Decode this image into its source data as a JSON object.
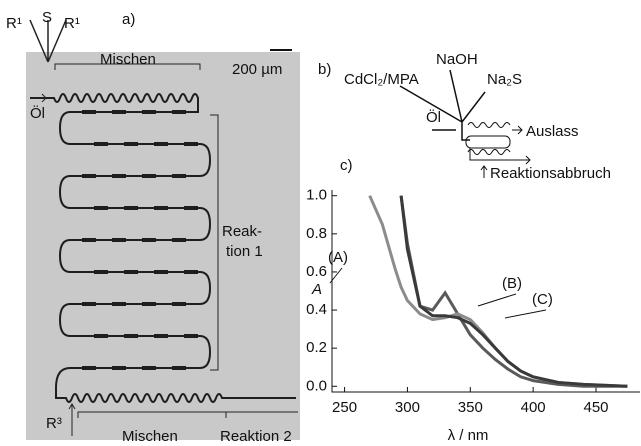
{
  "panel_a": {
    "label": "a)",
    "inlets": [
      "R¹",
      "S",
      "R¹"
    ],
    "mixing_top": "Mischen",
    "scale_bar": "200 µm",
    "oil": "Öl",
    "reaction_1": [
      "Reak-",
      "tion 1"
    ],
    "inlet_bottom": "R³",
    "mixing_bottom": "Mischen",
    "reaction_2": "Reaktion 2"
  },
  "panel_b": {
    "label": "b)",
    "naoh": "NaOH",
    "cdcl2": "CdCl₂/MPA",
    "na2s": "Na₂S",
    "oil": "Öl",
    "outlet": "Auslass",
    "quench": "Reaktionsabbruch"
  },
  "panel_c_label": "c)",
  "chart_data": {
    "type": "line",
    "xlabel": "λ / nm",
    "ylabel": "A",
    "x": [
      270,
      280,
      290,
      295,
      300,
      310,
      320,
      330,
      340,
      350,
      360,
      370,
      380,
      390,
      400,
      420,
      440,
      475
    ],
    "series": [
      {
        "name": "(A)",
        "color": "#5a5a5a",
        "values": [
          null,
          null,
          null,
          1.0,
          0.75,
          0.42,
          0.4,
          0.49,
          0.38,
          0.27,
          0.2,
          0.14,
          0.09,
          0.05,
          0.03,
          0.01,
          0.0,
          0.0
        ]
      },
      {
        "name": "(B)",
        "color": "#8c8c8c",
        "values": [
          1.0,
          0.85,
          0.62,
          0.52,
          0.45,
          0.38,
          0.35,
          0.36,
          0.38,
          0.35,
          0.28,
          0.2,
          0.13,
          0.08,
          0.05,
          0.02,
          0.01,
          0.0
        ]
      },
      {
        "name": "(C)",
        "color": "#3a3a3a",
        "values": [
          null,
          null,
          null,
          1.0,
          0.72,
          0.42,
          0.37,
          0.37,
          0.36,
          0.33,
          0.27,
          0.2,
          0.13,
          0.08,
          0.05,
          0.02,
          0.01,
          0.0
        ]
      }
    ],
    "xlim": [
      240,
      485
    ],
    "ylim": [
      -0.03,
      1.03
    ],
    "xticks": [
      250,
      300,
      350,
      400,
      450
    ],
    "yticks": [
      {
        "value": 0,
        "label": "0.0"
      },
      0.2,
      0.4,
      0.6,
      0.8,
      {
        "value": 1,
        "label": "1.0"
      }
    ]
  }
}
